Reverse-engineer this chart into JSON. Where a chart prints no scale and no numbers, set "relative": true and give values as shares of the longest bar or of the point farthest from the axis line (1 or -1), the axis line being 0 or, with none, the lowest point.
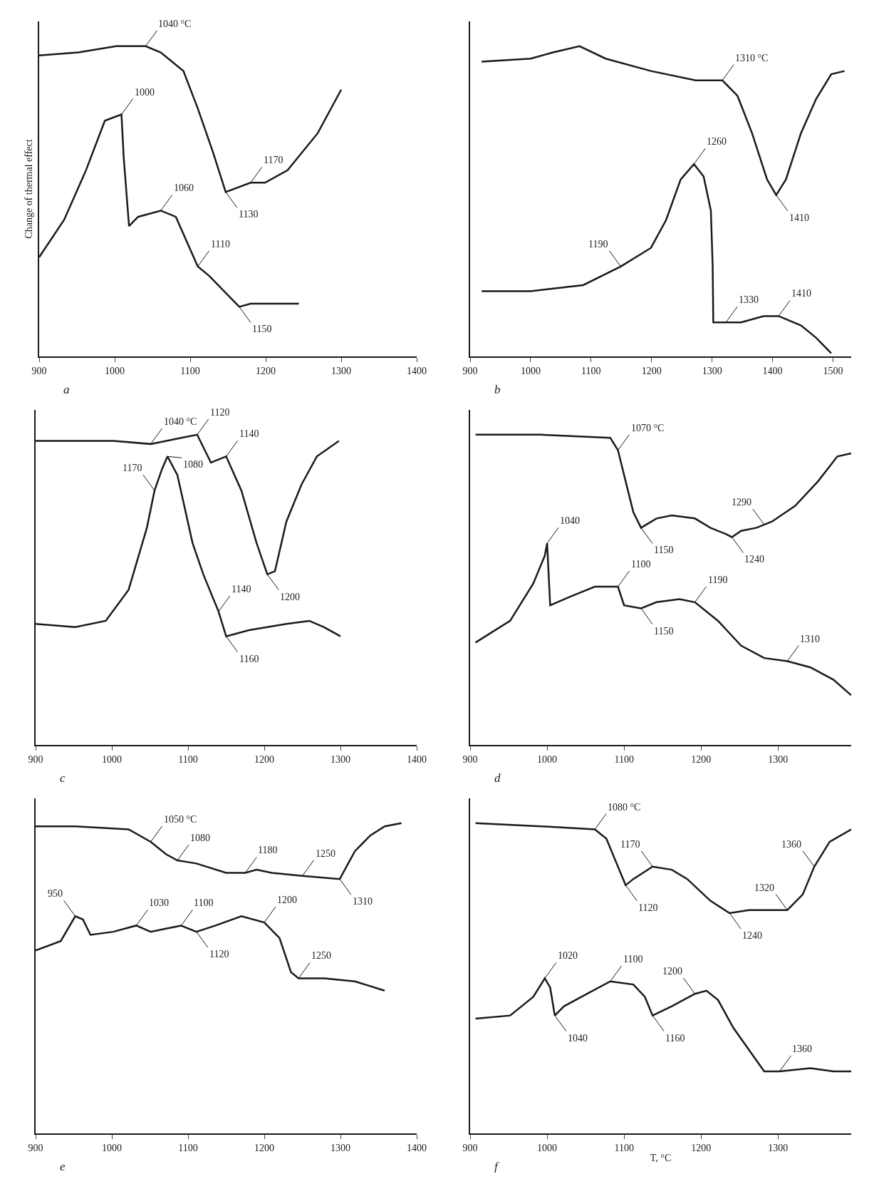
{
  "chart_data": [
    {
      "type": "line",
      "relative": true,
      "ylabel": "Change of thermal effect",
      "xlim": [
        900,
        1400
      ],
      "xticks": [
        900,
        1000,
        1100,
        1200,
        1300,
        1400
      ],
      "legend": false,
      "grid": false,
      "marker": "none",
      "line_style": "solid",
      "series": [
        {
          "color": "#1a1a1a",
          "x": [
            900,
            952,
            1002,
            1041,
            1061,
            1091,
            1110,
            1130,
            1147,
            1180,
            1199,
            1229,
            1269,
            1300
          ],
          "values": [
            0.97,
            0.98,
            1.0,
            1.0,
            0.98,
            0.92,
            0.8,
            0.66,
            0.53,
            0.56,
            0.56,
            0.6,
            0.72,
            0.86
          ]
        },
        {
          "color": "#1a1a1a",
          "x": [
            900,
            933,
            962,
            987,
            1009,
            1012,
            1019,
            1031,
            1061,
            1081,
            1110,
            1125,
            1145,
            1165,
            1180,
            1209,
            1244
          ],
          "values": [
            0.32,
            0.44,
            0.6,
            0.76,
            0.78,
            0.64,
            0.42,
            0.45,
            0.47,
            0.45,
            0.29,
            0.26,
            0.21,
            0.16,
            0.17,
            0.17,
            0.17
          ]
        }
      ],
      "annotations": [
        {
          "text": "1040 °C",
          "x": 1041,
          "y": 1.0
        },
        {
          "text": "1000",
          "x": 1009,
          "y": 0.78
        },
        {
          "text": "1170",
          "x": 1180,
          "y": 0.56
        },
        {
          "text": "1130",
          "x": 1147,
          "y": 0.53
        },
        {
          "text": "1060",
          "x": 1061,
          "y": 0.47
        },
        {
          "text": "1110",
          "x": 1110,
          "y": 0.29
        },
        {
          "text": "1150",
          "x": 1165,
          "y": 0.16
        },
        "a"
      ]
    },
    {
      "type": "line",
      "relative": true,
      "xlim": [
        900,
        1530
      ],
      "xticks": [
        900,
        1000,
        1100,
        1200,
        1300,
        1400,
        1500
      ],
      "legend": false,
      "grid": false,
      "marker": "none",
      "line_style": "solid",
      "series": [
        {
          "color": "#1a1a1a",
          "x": [
            919,
            1000,
            1037,
            1081,
            1124,
            1199,
            1273,
            1317,
            1342,
            1366,
            1391,
            1406,
            1422,
            1447,
            1472,
            1497,
            1519
          ],
          "values": [
            0.95,
            0.96,
            0.98,
            1.0,
            0.96,
            0.92,
            0.89,
            0.89,
            0.84,
            0.72,
            0.57,
            0.52,
            0.57,
            0.72,
            0.83,
            0.91,
            0.92
          ]
        },
        {
          "color": "#1a1a1a",
          "x": [
            919,
            1000,
            1087,
            1149,
            1199,
            1224,
            1248,
            1270,
            1286,
            1298,
            1301,
            1302,
            1323,
            1348,
            1385,
            1410,
            1447,
            1472,
            1497
          ],
          "values": [
            0.21,
            0.21,
            0.23,
            0.29,
            0.35,
            0.44,
            0.57,
            0.62,
            0.58,
            0.47,
            0.29,
            0.11,
            0.11,
            0.11,
            0.13,
            0.13,
            0.1,
            0.06,
            0.01
          ]
        }
      ],
      "annotations": [
        {
          "text": "1310 °C",
          "x": 1317,
          "y": 0.89
        },
        {
          "text": "1410",
          "x": 1406,
          "y": 0.52
        },
        {
          "text": "1260",
          "x": 1270,
          "y": 0.62
        },
        {
          "text": "1190",
          "x": 1149,
          "y": 0.29
        },
        {
          "text": "1330",
          "x": 1323,
          "y": 0.11
        },
        {
          "text": "1410",
          "x": 1410,
          "y": 0.13
        },
        "b"
      ]
    },
    {
      "type": "line",
      "relative": true,
      "xlim": [
        900,
        1400
      ],
      "xticks": [
        900,
        1000,
        1100,
        1200,
        1300,
        1400
      ],
      "legend": false,
      "grid": false,
      "marker": "none",
      "line_style": "solid",
      "series": [
        {
          "color": "#1a1a1a",
          "x": [
            900,
            952,
            1002,
            1051,
            1091,
            1112,
            1130,
            1140,
            1150,
            1170,
            1190,
            1204,
            1214,
            1229,
            1249,
            1269,
            1298
          ],
          "values": [
            0.98,
            0.98,
            0.98,
            0.97,
            0.99,
            1.0,
            0.91,
            0.92,
            0.93,
            0.82,
            0.65,
            0.55,
            0.56,
            0.72,
            0.84,
            0.93,
            0.98
          ]
        },
        {
          "color": "#1a1a1a",
          "x": [
            900,
            952,
            992,
            1022,
            1046,
            1056,
            1066,
            1073,
            1086,
            1106,
            1120,
            1140,
            1150,
            1180,
            1229,
            1259,
            1278,
            1300
          ],
          "values": [
            0.39,
            0.38,
            0.4,
            0.5,
            0.7,
            0.82,
            0.89,
            0.93,
            0.87,
            0.65,
            0.55,
            0.43,
            0.35,
            0.37,
            0.39,
            0.4,
            0.38,
            0.35
          ]
        }
      ],
      "annotations": [
        {
          "text": "1040 °C",
          "x": 1051,
          "y": 0.97
        },
        {
          "text": "1120",
          "x": 1112,
          "y": 1.0
        },
        {
          "text": "1140",
          "x": 1150,
          "y": 0.93
        },
        {
          "text": "1080",
          "x": 1073,
          "y": 0.93
        },
        {
          "text": "1170",
          "x": 1056,
          "y": 0.82
        },
        {
          "text": "1200",
          "x": 1204,
          "y": 0.55
        },
        {
          "text": "1140",
          "x": 1140,
          "y": 0.43
        },
        {
          "text": "1160",
          "x": 1150,
          "y": 0.35
        },
        "c"
      ]
    },
    {
      "type": "line",
      "relative": true,
      "xlim": [
        900,
        1395
      ],
      "xticks": [
        900,
        1000,
        1100,
        1200,
        1300
      ],
      "legend": false,
      "grid": false,
      "marker": "none",
      "line_style": "solid",
      "series": [
        {
          "color": "#1a1a1a",
          "x": [
            907,
            992,
            1082,
            1092,
            1102,
            1112,
            1122,
            1142,
            1162,
            1192,
            1212,
            1232,
            1240,
            1252,
            1272,
            1292,
            1322,
            1352,
            1377,
            1395
          ],
          "values": [
            1.0,
            1.0,
            0.99,
            0.95,
            0.85,
            0.75,
            0.7,
            0.73,
            0.74,
            0.73,
            0.7,
            0.68,
            0.67,
            0.69,
            0.7,
            0.72,
            0.77,
            0.85,
            0.93,
            0.94
          ]
        },
        {
          "color": "#1a1a1a",
          "x": [
            907,
            952,
            982,
            997,
            1000,
            1004,
            1032,
            1062,
            1092,
            1100,
            1122,
            1142,
            1172,
            1192,
            1222,
            1252,
            1282,
            1312,
            1342,
            1372,
            1395
          ],
          "values": [
            0.33,
            0.4,
            0.52,
            0.61,
            0.65,
            0.45,
            0.48,
            0.51,
            0.51,
            0.45,
            0.44,
            0.46,
            0.47,
            0.46,
            0.4,
            0.32,
            0.28,
            0.27,
            0.25,
            0.21,
            0.16
          ]
        }
      ],
      "annotations": [
        {
          "text": "1070 °C",
          "x": 1092,
          "y": 0.95
        },
        {
          "text": "1150",
          "x": 1122,
          "y": 0.7
        },
        {
          "text": "1240",
          "x": 1240,
          "y": 0.67
        },
        {
          "text": "1290",
          "x": 1282,
          "y": 0.71
        },
        {
          "text": "1040",
          "x": 1000,
          "y": 0.65
        },
        {
          "text": "1100",
          "x": 1092,
          "y": 0.51
        },
        {
          "text": "1150",
          "x": 1122,
          "y": 0.44
        },
        {
          "text": "1190",
          "x": 1192,
          "y": 0.46
        },
        {
          "text": "1310",
          "x": 1312,
          "y": 0.27
        },
        "d"
      ]
    },
    {
      "type": "line",
      "relative": true,
      "xlim": [
        900,
        1400
      ],
      "xticks": [
        900,
        1000,
        1100,
        1200,
        1300,
        1400
      ],
      "legend": false,
      "grid": false,
      "marker": "none",
      "line_style": "solid",
      "series": [
        {
          "color": "#1a1a1a",
          "x": [
            900,
            952,
            1022,
            1051,
            1071,
            1086,
            1111,
            1150,
            1175,
            1190,
            1210,
            1250,
            1299,
            1319,
            1339,
            1358,
            1380
          ],
          "values": [
            0.99,
            0.99,
            0.98,
            0.94,
            0.9,
            0.88,
            0.87,
            0.84,
            0.84,
            0.85,
            0.84,
            0.83,
            0.82,
            0.91,
            0.96,
            0.99,
            1.0
          ]
        },
        {
          "color": "#1a1a1a",
          "x": [
            900,
            933,
            952,
            962,
            972,
            1002,
            1032,
            1051,
            1071,
            1091,
            1111,
            1136,
            1170,
            1200,
            1220,
            1235,
            1245,
            1279,
            1319,
            1358
          ],
          "values": [
            0.59,
            0.62,
            0.7,
            0.69,
            0.64,
            0.65,
            0.67,
            0.65,
            0.66,
            0.67,
            0.65,
            0.67,
            0.7,
            0.68,
            0.63,
            0.52,
            0.5,
            0.5,
            0.49,
            0.46
          ]
        }
      ],
      "annotations": [
        {
          "text": "1050 °C",
          "x": 1051,
          "y": 0.94
        },
        {
          "text": "1080",
          "x": 1086,
          "y": 0.88
        },
        {
          "text": "1180",
          "x": 1175,
          "y": 0.84
        },
        {
          "text": "1250",
          "x": 1250,
          "y": 0.83
        },
        {
          "text": "1310",
          "x": 1299,
          "y": 0.82
        },
        {
          "text": "950",
          "x": 952,
          "y": 0.7
        },
        {
          "text": "1030",
          "x": 1032,
          "y": 0.67
        },
        {
          "text": "1100",
          "x": 1091,
          "y": 0.67
        },
        {
          "text": "1120",
          "x": 1111,
          "y": 0.65
        },
        {
          "text": "1200",
          "x": 1200,
          "y": 0.68
        },
        {
          "text": "1250",
          "x": 1245,
          "y": 0.5
        },
        "e"
      ]
    },
    {
      "type": "line",
      "relative": true,
      "xlabel": "T, °C",
      "xlim": [
        900,
        1395
      ],
      "xticks": [
        900,
        1000,
        1100,
        1200,
        1300
      ],
      "legend": false,
      "grid": false,
      "marker": "none",
      "line_style": "solid",
      "series": [
        {
          "color": "#1a1a1a",
          "x": [
            907,
            992,
            1062,
            1077,
            1092,
            1102,
            1112,
            1137,
            1162,
            1182,
            1212,
            1237,
            1262,
            1292,
            1312,
            1332,
            1347,
            1367,
            1395
          ],
          "values": [
            1.0,
            0.99,
            0.98,
            0.95,
            0.86,
            0.8,
            0.82,
            0.86,
            0.85,
            0.82,
            0.75,
            0.71,
            0.72,
            0.72,
            0.72,
            0.77,
            0.86,
            0.94,
            0.98
          ]
        },
        {
          "color": "#1a1a1a",
          "x": [
            907,
            952,
            982,
            997,
            1004,
            1010,
            1022,
            1052,
            1082,
            1112,
            1127,
            1137,
            1162,
            1192,
            1207,
            1222,
            1242,
            1262,
            1282,
            1302,
            1342,
            1372,
            1395
          ],
          "values": [
            0.37,
            0.38,
            0.44,
            0.5,
            0.47,
            0.38,
            0.41,
            0.45,
            0.49,
            0.48,
            0.44,
            0.38,
            0.41,
            0.45,
            0.46,
            0.43,
            0.34,
            0.27,
            0.2,
            0.2,
            0.21,
            0.2,
            0.2
          ]
        }
      ],
      "annotations": [
        {
          "text": "1080 °C",
          "x": 1062,
          "y": 0.98
        },
        {
          "text": "1170",
          "x": 1137,
          "y": 0.86
        },
        {
          "text": "1120",
          "x": 1102,
          "y": 0.8
        },
        {
          "text": "1240",
          "x": 1237,
          "y": 0.71
        },
        {
          "text": "1320",
          "x": 1312,
          "y": 0.72
        },
        {
          "text": "1360",
          "x": 1347,
          "y": 0.86
        },
        {
          "text": "1020",
          "x": 997,
          "y": 0.5
        },
        {
          "text": "1040",
          "x": 1010,
          "y": 0.38
        },
        {
          "text": "1100",
          "x": 1082,
          "y": 0.49
        },
        {
          "text": "1160",
          "x": 1137,
          "y": 0.38
        },
        {
          "text": "1200",
          "x": 1192,
          "y": 0.45
        },
        {
          "text": "1360",
          "x": 1302,
          "y": 0.2
        },
        "f"
      ]
    }
  ]
}
